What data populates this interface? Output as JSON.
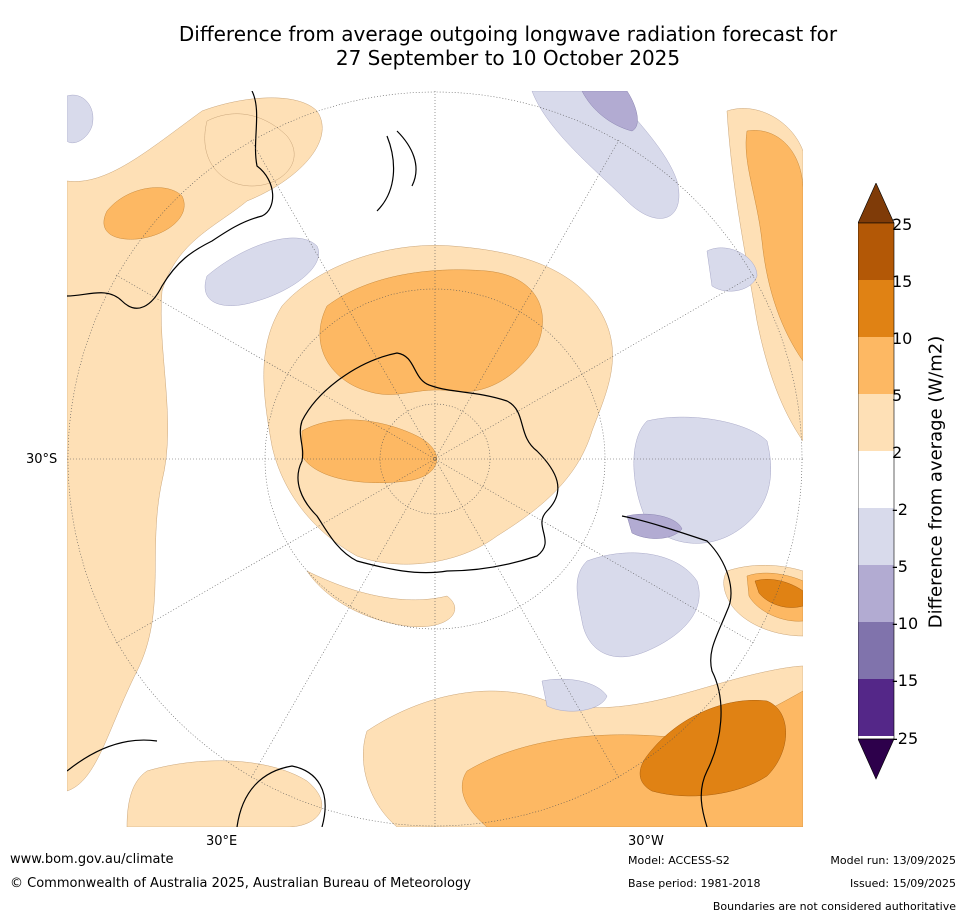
{
  "title": {
    "line1": "Difference from average outgoing longwave radiation forecast for",
    "line2": "27 September to 10 October 2025"
  },
  "map": {
    "projection": "south-polar-stereographic",
    "lat_label": "30°S",
    "lon_labels": {
      "left": "30°E",
      "right": "30°W"
    }
  },
  "colorbar": {
    "title": "Difference from average (W/m2)",
    "ticks": [
      "25",
      "15",
      "10",
      "5",
      "2",
      "-2",
      "-5",
      "-10",
      "-15",
      "-25"
    ],
    "colors": {
      "above_25": "#7f3b08",
      "15_25": "#b35806",
      "10_15": "#e08214",
      "5_10": "#fdb863",
      "2_5": "#fee0b6",
      "m2_2": "#ffffff",
      "m5_m2": "#d8daeb",
      "m10_m5": "#b2abd2",
      "m15_m10": "#8073ac",
      "m25_m15": "#542788",
      "below_m25": "#2d004b"
    }
  },
  "footer": {
    "website": "www.bom.gov.au/climate",
    "copyright": "© Commonwealth of Australia 2025, Australian Bureau of Meteorology",
    "model": "Model: ACCESS-S2",
    "base_period": "Base period: 1981-2018",
    "model_run": "Model run: 13/09/2025",
    "issued": "Issued: 15/09/2025",
    "disclaimer": "Boundaries are not considered authoritative"
  }
}
